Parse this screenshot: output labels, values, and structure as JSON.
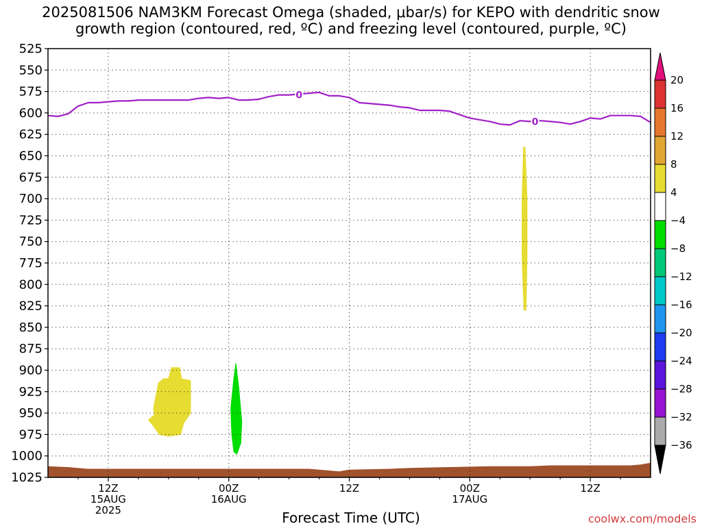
{
  "title_line1": "2025081506 NAM3KM Forecast Omega (shaded, μbar/s) for KEPO with dendritic snow",
  "title_line2": "growth region (contoured, red, ºC) and freezing level (contoured, purple, ºC)",
  "credit": "coolwx.com/models",
  "colors": {
    "freezing_level": "#a020c8",
    "ground": "#a0522d",
    "omega_yellow": "#e6dc32",
    "omega_green": "#00dc00"
  },
  "chart_data": {
    "type": "area",
    "xlabel": "Forecast Time (UTC)",
    "x_unit": "forecast hour from 2025081506",
    "x_range": [
      0,
      60
    ],
    "y_unit": "pressure (mb)",
    "y_range": [
      525,
      1025
    ],
    "y_reversed": true,
    "grid": true,
    "y_ticks": [
      525,
      550,
      575,
      600,
      625,
      650,
      675,
      700,
      725,
      750,
      775,
      800,
      825,
      850,
      875,
      900,
      925,
      950,
      975,
      1000,
      1025
    ],
    "x_ticks": [
      {
        "hour": 6,
        "label": [
          "12Z",
          "15AUG",
          "2025"
        ]
      },
      {
        "hour": 18,
        "label": [
          "00Z",
          "16AUG"
        ]
      },
      {
        "hour": 30,
        "label": [
          "12Z"
        ]
      },
      {
        "hour": 42,
        "label": [
          "00Z",
          "17AUG"
        ]
      },
      {
        "hour": 54,
        "label": [
          "12Z"
        ]
      }
    ],
    "freezing_level": {
      "contour_label": "0",
      "label_points": [
        [
          25,
          579
        ],
        [
          48.5,
          610
        ]
      ],
      "points": [
        [
          0,
          603
        ],
        [
          1,
          604
        ],
        [
          2,
          601
        ],
        [
          3,
          592
        ],
        [
          4,
          588
        ],
        [
          5,
          588
        ],
        [
          6,
          587
        ],
        [
          7,
          586
        ],
        [
          8,
          586
        ],
        [
          9,
          585
        ],
        [
          10,
          585
        ],
        [
          11,
          585
        ],
        [
          12,
          585
        ],
        [
          13,
          585
        ],
        [
          14,
          585
        ],
        [
          15,
          583
        ],
        [
          16,
          582
        ],
        [
          17,
          583
        ],
        [
          18,
          582
        ],
        [
          19,
          585
        ],
        [
          20,
          585
        ],
        [
          21,
          584
        ],
        [
          22,
          581
        ],
        [
          23,
          579
        ],
        [
          24,
          579
        ],
        [
          25,
          578
        ],
        [
          26,
          577
        ],
        [
          27,
          576
        ],
        [
          28,
          580
        ],
        [
          29,
          580
        ],
        [
          30,
          582
        ],
        [
          31,
          588
        ],
        [
          32,
          589
        ],
        [
          33,
          590
        ],
        [
          34,
          591
        ],
        [
          35,
          593
        ],
        [
          36,
          594
        ],
        [
          37,
          597
        ],
        [
          38,
          597
        ],
        [
          39,
          597
        ],
        [
          40,
          598
        ],
        [
          41,
          602
        ],
        [
          42,
          606
        ],
        [
          43,
          608
        ],
        [
          44,
          610
        ],
        [
          45,
          613
        ],
        [
          46,
          614
        ],
        [
          47,
          609
        ],
        [
          48,
          610
        ],
        [
          49,
          609
        ],
        [
          50,
          610
        ],
        [
          51,
          611
        ],
        [
          52,
          613
        ],
        [
          53,
          610
        ],
        [
          54,
          606
        ],
        [
          55,
          607
        ],
        [
          56,
          603
        ],
        [
          57,
          603
        ],
        [
          58,
          603
        ],
        [
          59,
          604
        ],
        [
          60,
          611
        ]
      ]
    },
    "ground_surface": {
      "points": [
        [
          0,
          1012
        ],
        [
          2,
          1013
        ],
        [
          4,
          1015
        ],
        [
          6,
          1015
        ],
        [
          10,
          1015
        ],
        [
          14,
          1015
        ],
        [
          18,
          1015
        ],
        [
          22,
          1015
        ],
        [
          26,
          1015
        ],
        [
          28,
          1017
        ],
        [
          29,
          1018
        ],
        [
          30,
          1016
        ],
        [
          34,
          1015
        ],
        [
          36,
          1014
        ],
        [
          40,
          1013
        ],
        [
          44,
          1012
        ],
        [
          48,
          1012
        ],
        [
          50,
          1011
        ],
        [
          54,
          1011
        ],
        [
          58,
          1011
        ],
        [
          59,
          1010
        ],
        [
          60,
          1008
        ]
      ]
    },
    "omega_regions": [
      {
        "value_bin": "4 to 8",
        "color": "#e6dc32",
        "outline": [
          [
            10.5,
            945
          ],
          [
            11,
            915
          ],
          [
            11.5,
            910
          ],
          [
            12,
            910
          ],
          [
            12.3,
            897
          ],
          [
            13.1,
            897
          ],
          [
            13.3,
            910
          ],
          [
            14.2,
            912
          ],
          [
            14.2,
            950
          ],
          [
            13.5,
            962
          ],
          [
            13.2,
            975
          ],
          [
            12,
            977
          ],
          [
            11.1,
            975
          ],
          [
            10.5,
            965
          ],
          [
            10,
            958
          ],
          [
            10.6,
            952
          ]
        ]
      },
      {
        "value_bin": "-8 to -4",
        "color": "#00dc00",
        "outline": [
          [
            18.7,
            892
          ],
          [
            19.0,
            920
          ],
          [
            19.3,
            960
          ],
          [
            19.2,
            985
          ],
          [
            18.8,
            998
          ],
          [
            18.5,
            995
          ],
          [
            18.3,
            975
          ],
          [
            18.2,
            945
          ],
          [
            18.5,
            910
          ]
        ]
      },
      {
        "value_bin": "4 to 8",
        "color": "#e6dc32",
        "outline": [
          [
            47.5,
            640
          ],
          [
            47.7,
            700
          ],
          [
            47.7,
            770
          ],
          [
            47.6,
            830
          ],
          [
            47.4,
            830
          ],
          [
            47.2,
            770
          ],
          [
            47.2,
            700
          ],
          [
            47.35,
            640
          ]
        ]
      }
    ],
    "colorbar": {
      "labels": [
        "20",
        "16",
        "12",
        "8",
        "4",
        "−4",
        "−8",
        "−12",
        "−16",
        "−20",
        "−24",
        "−28",
        "−32",
        "−36"
      ],
      "colors": [
        "#dc3232",
        "#e6782d",
        "#e1a532",
        "#e6dc32",
        "#ffffff",
        "#00dc00",
        "#00c878",
        "#00c8c8",
        "#1e96f0",
        "#1e3cf0",
        "#5a14dc",
        "#9614d2",
        "#aaaaaa"
      ],
      "top_arrow_color": "#e0107a",
      "bottom_arrow_color": "#000000"
    }
  }
}
